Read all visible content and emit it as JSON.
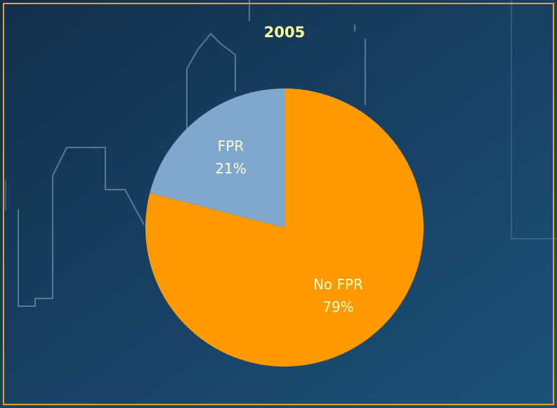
{
  "chart_data": {
    "type": "pie",
    "title": "2005",
    "categories": [
      "No FPR",
      "FPR"
    ],
    "values": [
      79,
      21
    ],
    "value_labels": [
      "79%",
      "21%"
    ],
    "colors": [
      "#ff9900",
      "#7fa8cc"
    ],
    "start_angle": 0,
    "direction": "clockwise"
  }
}
